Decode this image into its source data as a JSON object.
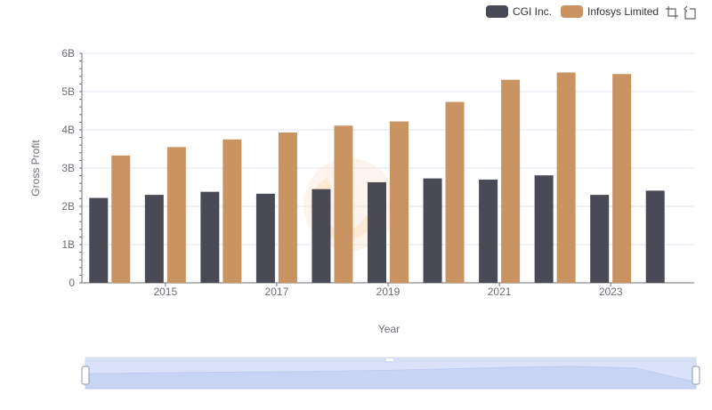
{
  "chart_data": {
    "type": "bar",
    "title": "",
    "xlabel": "Year",
    "ylabel": "Gross Profit",
    "x": [
      2014,
      2015,
      2016,
      2017,
      2018,
      2019,
      2020,
      2021,
      2022,
      2023,
      2024
    ],
    "x_tick_labels": [
      "2015",
      "2017",
      "2019",
      "2021",
      "2023"
    ],
    "y_tick_labels": [
      "0",
      "1B",
      "2B",
      "3B",
      "4B",
      "5B",
      "6B"
    ],
    "ylim": [
      0,
      6000000000
    ],
    "grid": true,
    "legend_position": "top-right",
    "series": [
      {
        "name": "CGI Inc.",
        "color": "#4a4a56",
        "values": [
          2220000000,
          2300000000,
          2380000000,
          2330000000,
          2450000000,
          2630000000,
          2730000000,
          2700000000,
          2810000000,
          2300000000,
          2410000000
        ]
      },
      {
        "name": "Infosys Limited",
        "color": "#c99462",
        "values": [
          3330000000,
          3550000000,
          3750000000,
          3930000000,
          4110000000,
          4220000000,
          4730000000,
          5310000000,
          5500000000,
          5460000000,
          null
        ]
      }
    ]
  },
  "toolbox": {
    "zoom_icon": "zoom-icon",
    "restore_icon": "restore-icon"
  },
  "datazoom": {
    "range_start_percent": 0,
    "range_end_percent": 100
  }
}
